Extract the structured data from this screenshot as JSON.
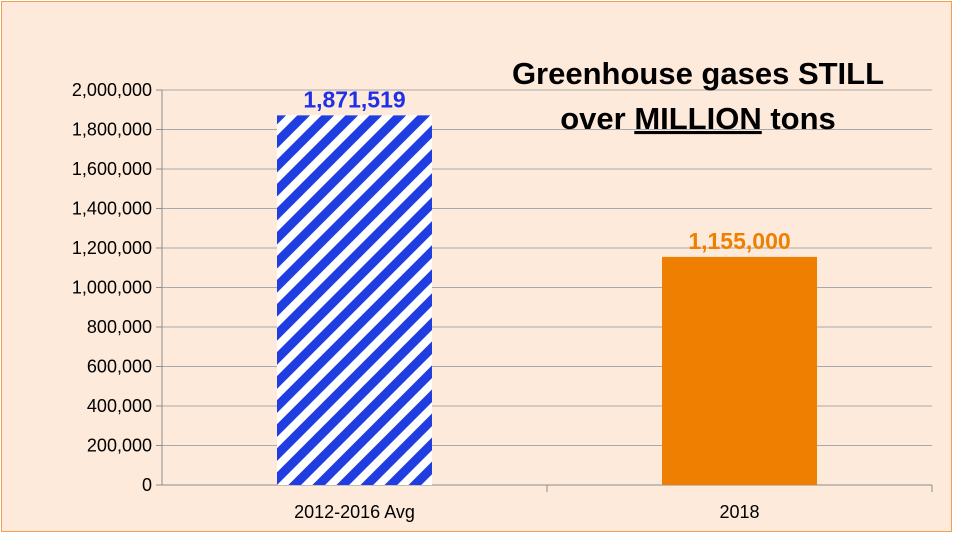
{
  "chart_data": {
    "type": "bar",
    "title_line1": "Greenhouse gases STILL",
    "title_line2_prefix": "over ",
    "title_line2_emphasis": "MILLION",
    "title_line2_suffix": " tons",
    "categories": [
      "2012-2016 Avg",
      "2018"
    ],
    "values": [
      1871519,
      1155000
    ],
    "value_labels": [
      "1,871,519",
      "1,155,000"
    ],
    "bar_styles": [
      "blue-diagonal-stripes",
      "solid-orange"
    ],
    "colors": {
      "bar1_stripe": "#1f3de0",
      "bar1_label": "#1f2fe8",
      "bar2_fill": "#ef7f00",
      "bar2_label": "#ef7f00",
      "background": "#fdeadb",
      "grid": "#a9a9a9"
    },
    "ylim": [
      0,
      2000000
    ],
    "yticks": [
      0,
      200000,
      400000,
      600000,
      800000,
      1000000,
      1200000,
      1400000,
      1600000,
      1800000,
      2000000
    ],
    "ytick_labels": [
      "0",
      "200,000",
      "400,000",
      "600,000",
      "800,000",
      "1,000,000",
      "1,200,000",
      "1,400,000",
      "1,600,000",
      "1,800,000",
      "2,000,000"
    ],
    "grid": true,
    "legend": false
  }
}
